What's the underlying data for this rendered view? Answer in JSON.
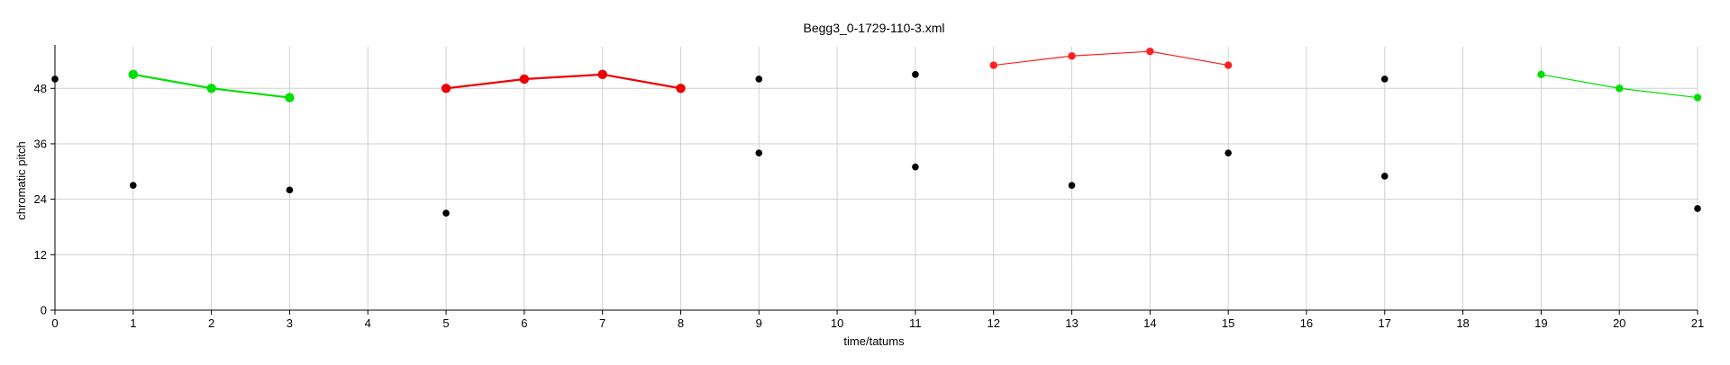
{
  "chart_data": {
    "type": "scatter",
    "title": "Begg3_0-1729-110-3.xml",
    "xlabel": "time/tatums",
    "ylabel": "chromatic pitch",
    "xlim": [
      0,
      21
    ],
    "ylim": [
      0,
      57
    ],
    "x_ticks": [
      "0",
      "1",
      "2",
      "3",
      "4",
      "5",
      "6",
      "7",
      "8",
      "9",
      "10",
      "11",
      "12",
      "13",
      "14",
      "15",
      "16",
      "17",
      "18",
      "19",
      "20",
      "21"
    ],
    "y_ticks": [
      "0",
      "12",
      "24",
      "36",
      "48"
    ],
    "grid": true,
    "series": [
      {
        "color": "#00e000",
        "style": "thick",
        "connected": true,
        "points": [
          [
            1,
            51
          ],
          [
            2,
            48
          ],
          [
            3,
            46
          ]
        ]
      },
      {
        "color": "#ee0000",
        "style": "thick",
        "connected": true,
        "points": [
          [
            5,
            48
          ],
          [
            6,
            50
          ],
          [
            7,
            51
          ],
          [
            8,
            48
          ]
        ]
      },
      {
        "color": "#ff2020",
        "style": "thin",
        "connected": true,
        "points": [
          [
            12,
            53
          ],
          [
            13,
            55
          ],
          [
            14,
            56
          ],
          [
            15,
            53
          ]
        ]
      },
      {
        "color": "#00e000",
        "style": "thin",
        "connected": true,
        "points": [
          [
            19,
            51
          ],
          [
            20,
            48
          ],
          [
            21,
            46
          ]
        ]
      },
      {
        "color": "#000000",
        "style": "small",
        "connected": false,
        "points": [
          [
            0,
            50
          ],
          [
            1,
            27
          ],
          [
            3,
            26
          ],
          [
            5,
            21
          ],
          [
            9,
            50
          ],
          [
            9,
            34
          ],
          [
            11,
            51
          ],
          [
            11,
            31
          ],
          [
            13,
            27
          ],
          [
            15,
            34
          ],
          [
            17,
            50
          ],
          [
            17,
            29
          ],
          [
            21,
            22
          ]
        ]
      }
    ]
  }
}
